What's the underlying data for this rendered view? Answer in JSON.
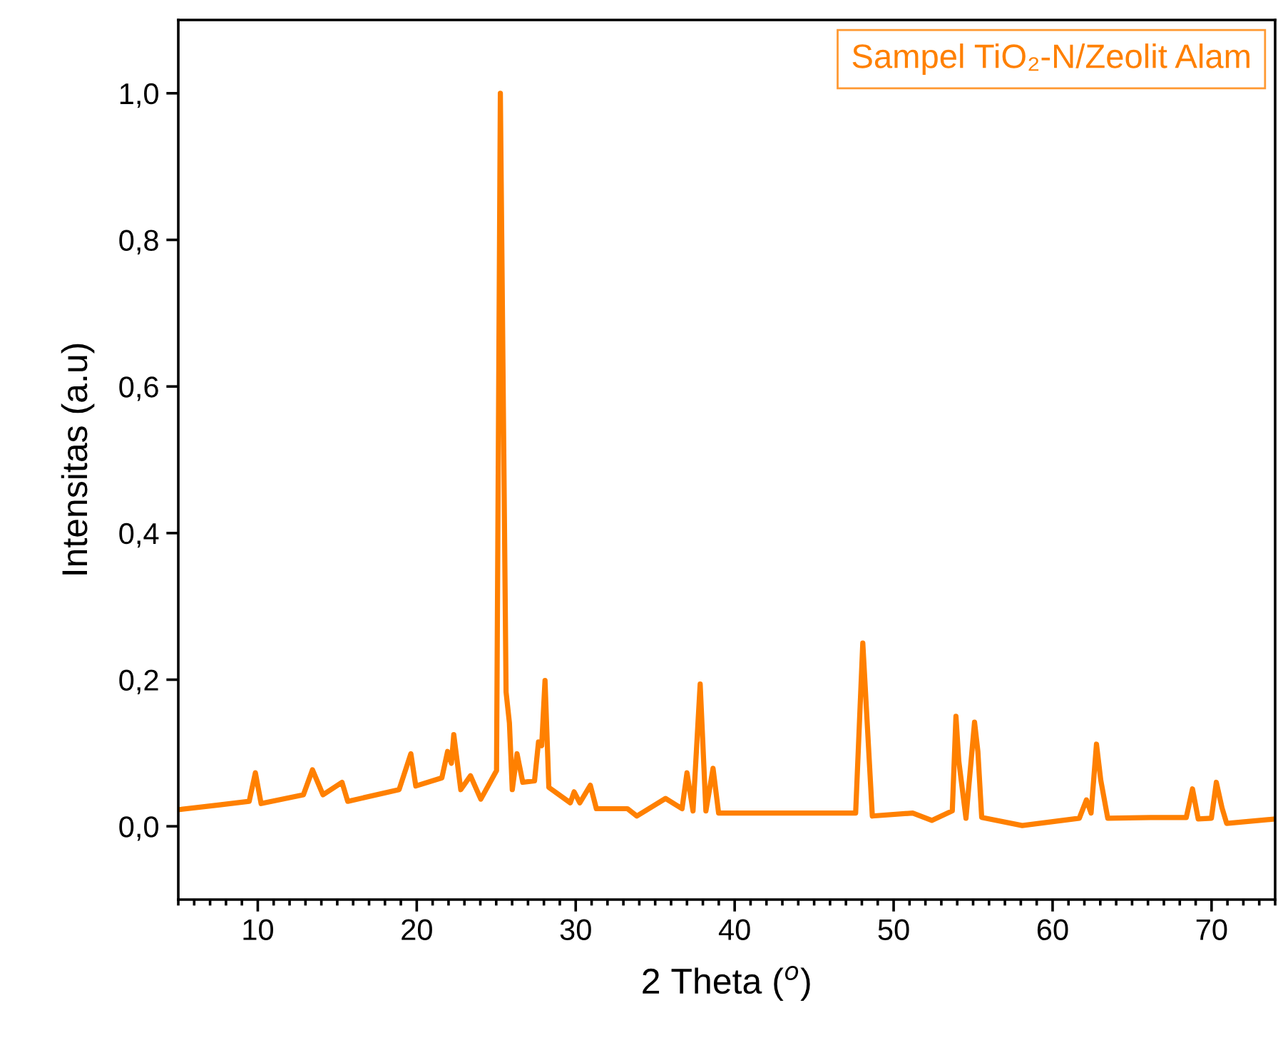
{
  "chart_data": {
    "type": "line",
    "xlabel": "2 Theta ($^{o}$)",
    "ylabel": "Intensitas (a.u)",
    "xlim": [
      5,
      74
    ],
    "xticks": [
      10,
      20,
      30,
      40,
      50,
      60,
      70
    ],
    "ylim": [
      -0.1,
      1.1
    ],
    "yticks": [
      {
        "value": 0,
        "label": "0,0"
      },
      {
        "value": 0.2,
        "label": "0,2"
      },
      {
        "value": 0.4,
        "label": "0,4"
      },
      {
        "value": 0.6,
        "label": "0,6"
      },
      {
        "value": 0.8,
        "label": "0,8"
      },
      {
        "value": 1.0,
        "label": "1,0"
      }
    ],
    "grid": false,
    "legend": "top right",
    "marker": "none",
    "line_style": "solid",
    "series": [
      {
        "name": "Sampel TiO₂-N/Zeolit Alam",
        "color": "#ff8000",
        "x": [
          5.15,
          7.51,
          9.46,
          9.85,
          10.21,
          12.87,
          13.44,
          14.1,
          15.3,
          15.66,
          18.89,
          19.63,
          19.94,
          21.58,
          21.94,
          22.18,
          22.33,
          22.77,
          23.38,
          24.03,
          25.02,
          25.26,
          25.62,
          25.83,
          26.01,
          26.31,
          26.67,
          27.41,
          27.66,
          27.86,
          28.07,
          28.31,
          29.66,
          29.9,
          30.26,
          30.92,
          31.3,
          33.25,
          33.85,
          35.65,
          36.69,
          37.0,
          37.38,
          37.83,
          38.19,
          38.64,
          38.99,
          47.61,
          48.06,
          48.66,
          51.2,
          52.4,
          53.69,
          53.92,
          54.1,
          54.55,
          55.09,
          55.3,
          55.54,
          58.09,
          61.68,
          62.13,
          62.42,
          62.76,
          63.03,
          63.47,
          66.17,
          68.41,
          68.8,
          69.16,
          69.99,
          70.3,
          70.66,
          70.95,
          74.0
        ],
        "values": [
          0.023,
          0.029,
          0.034,
          0.073,
          0.031,
          0.043,
          0.077,
          0.043,
          0.06,
          0.034,
          0.05,
          0.099,
          0.055,
          0.066,
          0.102,
          0.086,
          0.125,
          0.05,
          0.069,
          0.037,
          0.076,
          1.0,
          0.183,
          0.141,
          0.05,
          0.099,
          0.06,
          0.062,
          0.115,
          0.11,
          0.199,
          0.053,
          0.032,
          0.047,
          0.032,
          0.056,
          0.024,
          0.024,
          0.014,
          0.038,
          0.024,
          0.073,
          0.021,
          0.194,
          0.021,
          0.079,
          0.018,
          0.018,
          0.25,
          0.014,
          0.018,
          0.008,
          0.021,
          0.15,
          0.089,
          0.011,
          0.142,
          0.102,
          0.012,
          0.001,
          0.011,
          0.036,
          0.018,
          0.112,
          0.063,
          0.011,
          0.012,
          0.012,
          0.051,
          0.01,
          0.011,
          0.06,
          0.025,
          0.004,
          0.01
        ]
      }
    ]
  }
}
